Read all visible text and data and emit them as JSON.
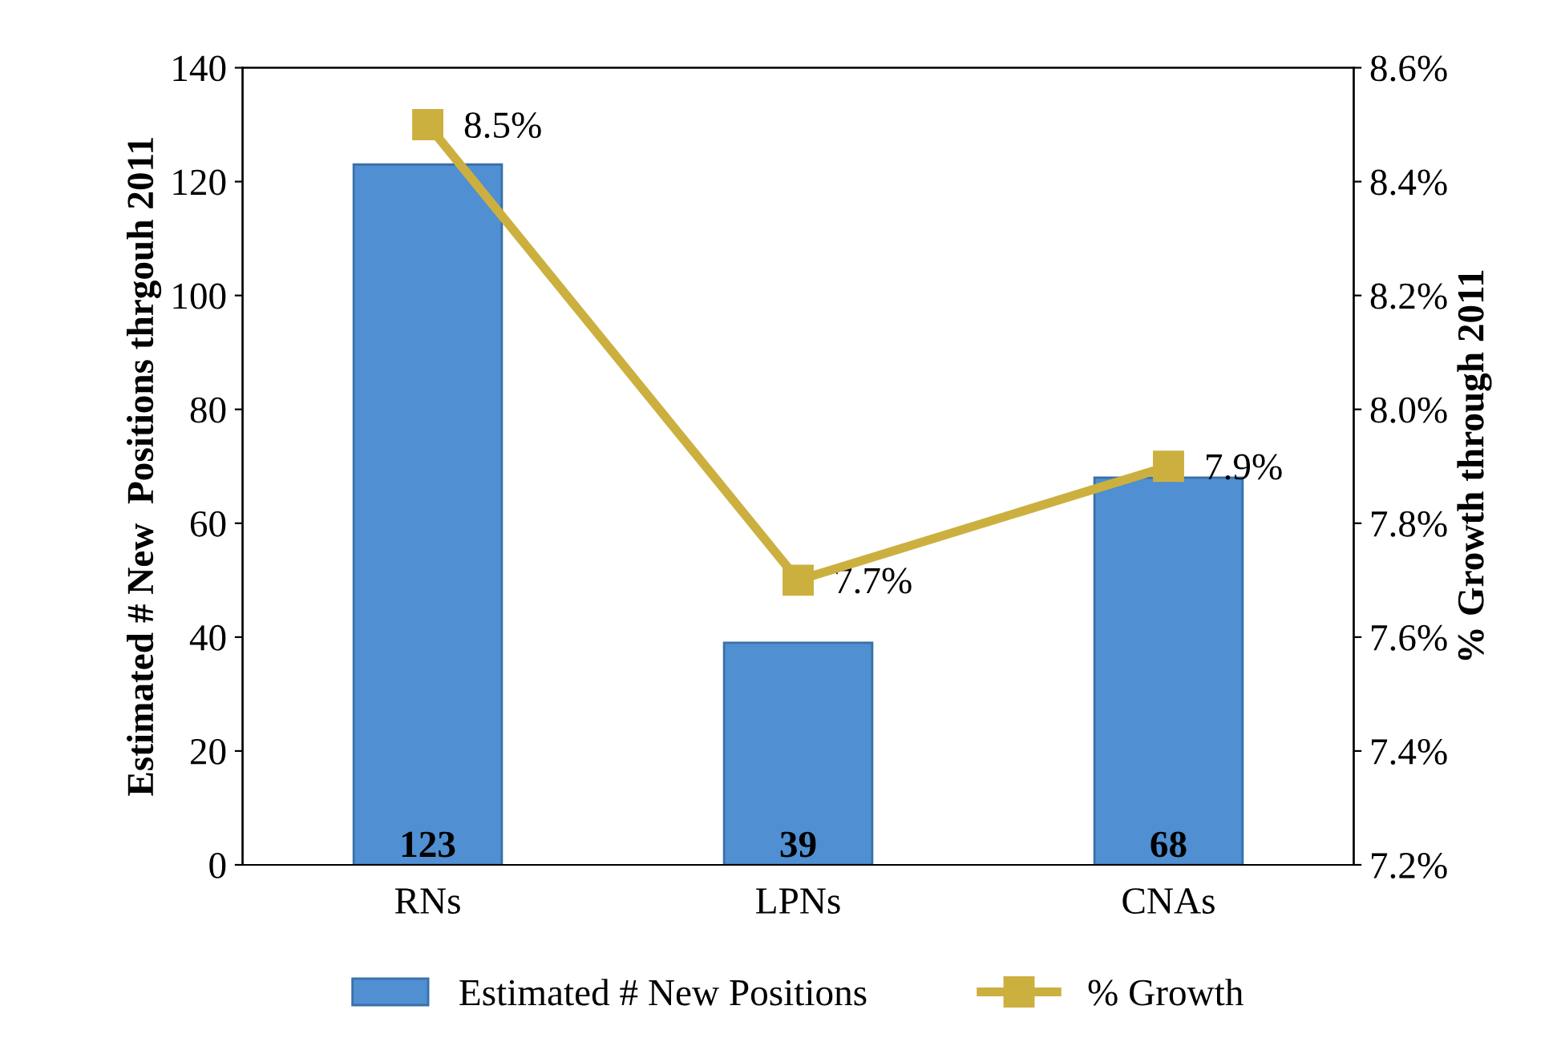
{
  "chart_data": {
    "type": "bar",
    "categories": [
      "RNs",
      "LPNs",
      "CNAs"
    ],
    "ylabel": "Estimated # New  Positions thrgouh 2011",
    "y2label": "% Growth through 2011",
    "ylim": [
      0,
      140
    ],
    "yticks": [
      0,
      20,
      40,
      60,
      80,
      100,
      120,
      140
    ],
    "y2lim": [
      7.2,
      8.6
    ],
    "y2ticks": [
      {
        "value": 7.2,
        "label": "7.2%"
      },
      {
        "value": 7.4,
        "label": "7.4%"
      },
      {
        "value": 7.6,
        "label": "7.6%"
      },
      {
        "value": 7.8,
        "label": "7.8%"
      },
      {
        "value": 8.0,
        "label": "8.0%"
      },
      {
        "value": 8.2,
        "label": "8.2%"
      },
      {
        "value": 8.4,
        "label": "8.4%"
      },
      {
        "value": 8.6,
        "label": "8.6%"
      }
    ],
    "series": [
      {
        "name": "Estimated # New Positions",
        "color": "#4f8fd2",
        "values": [
          123,
          39,
          68
        ],
        "value_labels": [
          "123",
          "39",
          "68"
        ]
      },
      {
        "name": "% Growth",
        "type": "line",
        "axis": "y2",
        "color": "#ccb03f",
        "marker": "square",
        "values": [
          8.5,
          7.7,
          7.9
        ],
        "value_labels": [
          "8.5%",
          "7.7%",
          "7.9%"
        ]
      }
    ],
    "grid": false,
    "legend": "bottom"
  }
}
